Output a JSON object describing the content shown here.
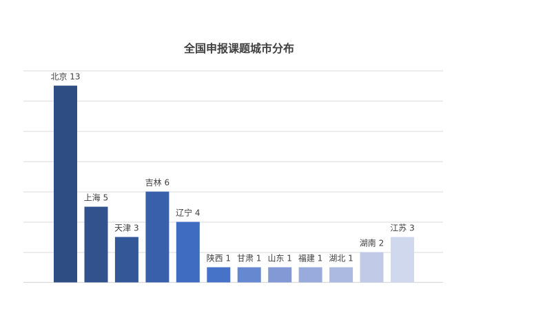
{
  "chart_data": {
    "type": "bar",
    "title": "全国申报课题城市分布",
    "categories": [
      "北京",
      "上海",
      "天津",
      "吉林",
      "辽宁",
      "陕西",
      "甘肃",
      "山东",
      "福建",
      "湖北",
      "湖南",
      "江苏"
    ],
    "values": [
      13,
      5,
      3,
      6,
      4,
      1,
      1,
      1,
      1,
      1,
      2,
      3
    ],
    "data_labels": [
      "北京 13",
      "上海 5",
      "天津 3",
      "吉林 6",
      "辽宁 4",
      "陕西 1",
      "甘肃 1",
      "山东 1",
      "福建 1",
      "湖北 1",
      "湖南 2",
      "江苏 3"
    ],
    "bar_colors": [
      "#2e4d82",
      "#31528c",
      "#345897",
      "#3961ab",
      "#3f6bc0",
      "#4672c8",
      "#6688d0",
      "#8299d6",
      "#98abdc",
      "#acbae1",
      "#c1cbe8",
      "#d0d8ee"
    ],
    "ylim": [
      0,
      14
    ],
    "grid": true,
    "xlabel": "",
    "ylabel": "",
    "legend": "none"
  }
}
